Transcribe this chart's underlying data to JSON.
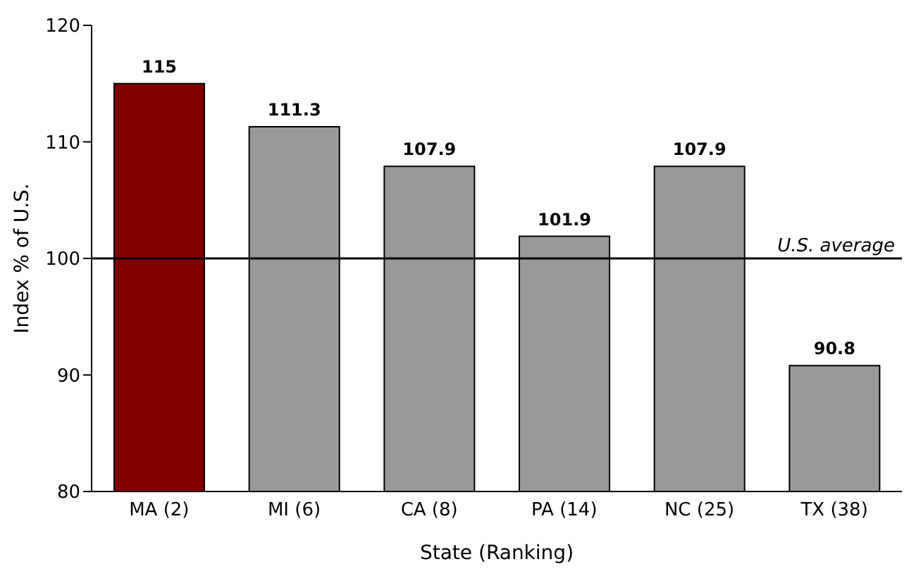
{
  "chart_data": {
    "type": "bar",
    "xlabel": "State (Ranking)",
    "ylabel": "Index % of U.S.",
    "categories": [
      "MA (2)",
      "MI (6)",
      "CA (8)",
      "PA (14)",
      "NC (25)",
      "TX (38)"
    ],
    "values": [
      115,
      111.3,
      107.9,
      101.9,
      107.9,
      90.8
    ],
    "colors": [
      "#800000",
      "#999999",
      "#999999",
      "#999999",
      "#999999",
      "#999999"
    ],
    "ylim": [
      80,
      120
    ],
    "yticks": [
      80,
      90,
      100,
      110,
      120
    ],
    "grid": false,
    "data_labels": true,
    "ref_lines": [
      {
        "axis": "y",
        "value": 100,
        "label": "U.S. average",
        "color": "#000000"
      }
    ]
  }
}
